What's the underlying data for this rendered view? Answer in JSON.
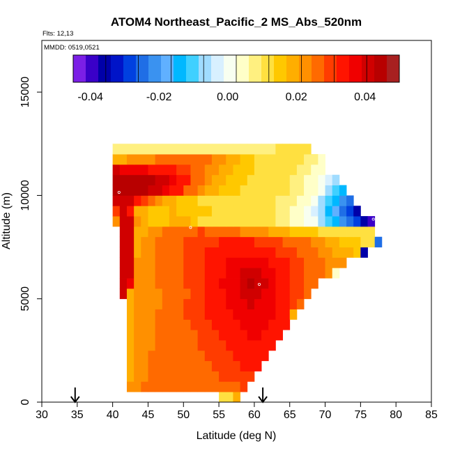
{
  "chart_data": {
    "type": "heatmap",
    "title": "ATOM4 Northeast_Pacific_2 MS_Abs_520nm",
    "annotations": {
      "flights": "Flts: 12,13",
      "dates": "MMDD: 0519,0521"
    },
    "xlabel": "Latitude (deg N)",
    "ylabel": "Altitude (m)",
    "xlim": [
      30,
      85
    ],
    "ylim": [
      0,
      17500
    ],
    "x_ticks": [
      "30",
      "35",
      "40",
      "45",
      "50",
      "55",
      "60",
      "65",
      "70",
      "75",
      "80",
      "85"
    ],
    "y_ticks": [
      "0",
      "5000",
      "10000",
      "15000"
    ],
    "grid": false,
    "colorbar": {
      "placement": "top",
      "range": [
        -0.045,
        0.05
      ],
      "tick_labels": [
        "-0.04",
        "-0.02",
        "0.00",
        "0.02",
        "0.04"
      ],
      "colors": [
        "#7b1fe6",
        "#3a00c8",
        "#0000a8",
        "#0014c8",
        "#0040e0",
        "#1f6ee6",
        "#3a92f0",
        "#60b0ff",
        "#00b8ff",
        "#40d0ff",
        "#a0dcff",
        "#d8f0ff",
        "#f8fff0",
        "#ffffc8",
        "#fff080",
        "#ffe040",
        "#ffc800",
        "#ffae00",
        "#ff9000",
        "#ff6a00",
        "#ff3c00",
        "#ff1400",
        "#f00000",
        "#d00000",
        "#b80000",
        "#a82020"
      ]
    },
    "flight_markers_lat": [
      34.7,
      61.2
    ],
    "highlight_points": [
      {
        "lat": 40.9,
        "alt": 10150
      },
      {
        "lat": 51.0,
        "alt": 8450
      },
      {
        "lat": 60.7,
        "alt": 5700
      },
      {
        "lat": 76.8,
        "alt": 8850
      }
    ],
    "grid_lat_step": 1,
    "grid_alt_step": 500,
    "cells": [
      {
        "alt": 250,
        "lat_start": 55,
        "values": [
          0.01,
          0.01,
          0.018
        ]
      },
      {
        "alt": 750,
        "lat_start": 42,
        "values": [
          0.022,
          0.022,
          0.025,
          0.025,
          0.025,
          0.025,
          0.025,
          0.026,
          0.026,
          0.026,
          0.027,
          0.027,
          0.028,
          0.028,
          0.028,
          0.028,
          0.03
        ]
      },
      {
        "alt": 1250,
        "lat_start": 42,
        "values": [
          0.02,
          0.022,
          0.024,
          0.025,
          0.025,
          0.026,
          0.026,
          0.026,
          0.027,
          0.027,
          0.027,
          0.028,
          0.028,
          0.029,
          0.029,
          0.03,
          0.031,
          0.031
        ]
      },
      {
        "alt": 1750,
        "lat_start": 42,
        "values": [
          0.02,
          0.022,
          0.023,
          0.025,
          0.025,
          0.025,
          0.026,
          0.027,
          0.027,
          0.027,
          0.028,
          0.028,
          0.029,
          0.029,
          0.03,
          0.031,
          0.032,
          0.033,
          0.033
        ]
      },
      {
        "alt": 2250,
        "lat_start": 42,
        "values": [
          0.02,
          0.021,
          0.023,
          0.025,
          0.025,
          0.026,
          0.026,
          0.027,
          0.027,
          0.028,
          0.028,
          0.029,
          0.029,
          0.03,
          0.031,
          0.032,
          0.033,
          0.034,
          0.034,
          0.034
        ]
      },
      {
        "alt": 2750,
        "lat_start": 42,
        "values": [
          0.02,
          0.021,
          0.023,
          0.024,
          0.025,
          0.026,
          0.026,
          0.027,
          0.028,
          0.028,
          0.029,
          0.029,
          0.03,
          0.031,
          0.032,
          0.033,
          0.034,
          0.035,
          0.035,
          0.034,
          0.033
        ]
      },
      {
        "alt": 3250,
        "lat_start": 42,
        "values": [
          0.02,
          0.021,
          0.023,
          0.024,
          0.025,
          0.026,
          0.027,
          0.027,
          0.028,
          0.028,
          0.029,
          0.03,
          0.031,
          0.032,
          0.033,
          0.034,
          0.035,
          0.036,
          0.036,
          0.035,
          0.034,
          0.033
        ]
      },
      {
        "alt": 3750,
        "lat_start": 42,
        "values": [
          0.02,
          0.021,
          0.022,
          0.024,
          0.025,
          0.026,
          0.027,
          0.027,
          0.028,
          0.029,
          0.03,
          0.031,
          0.032,
          0.033,
          0.034,
          0.035,
          0.036,
          0.037,
          0.037,
          0.036,
          0.035,
          0.033,
          0.032
        ]
      },
      {
        "alt": 4250,
        "lat_start": 42,
        "values": [
          0.02,
          0.021,
          0.022,
          0.023,
          0.025,
          0.026,
          0.027,
          0.028,
          0.029,
          0.03,
          0.031,
          0.032,
          0.033,
          0.034,
          0.035,
          0.036,
          0.037,
          0.038,
          0.038,
          0.037,
          0.036,
          0.034,
          0.032,
          0.02
        ]
      },
      {
        "alt": 4750,
        "lat_start": 42,
        "values": [
          0.02,
          0.021,
          0.022,
          0.023,
          0.024,
          0.026,
          0.027,
          0.028,
          0.029,
          0.03,
          0.031,
          0.032,
          0.033,
          0.034,
          0.036,
          0.037,
          0.039,
          0.04,
          0.039,
          0.038,
          0.036,
          0.034,
          0.032,
          0.03,
          0.028
        ]
      },
      {
        "alt": 5250,
        "lat_start": 41,
        "values": [
          0.04,
          0.02,
          0.021,
          0.022,
          0.023,
          0.024,
          0.025,
          0.026,
          0.027,
          0.028,
          0.029,
          0.03,
          0.032,
          0.033,
          0.035,
          0.036,
          0.038,
          0.04,
          0.041,
          0.041,
          0.039,
          0.037,
          0.035,
          0.033,
          0.031,
          0.029,
          0.028
        ]
      },
      {
        "alt": 5750,
        "lat_start": 41,
        "values": [
          0.04,
          0.038,
          0.022,
          0.023,
          0.024,
          0.025,
          0.026,
          0.027,
          0.028,
          0.029,
          0.03,
          0.031,
          0.033,
          0.034,
          0.036,
          0.037,
          0.039,
          0.041,
          0.043,
          0.042,
          0.04,
          0.038,
          0.035,
          0.033,
          0.031,
          0.029,
          0.028,
          0.026
        ]
      },
      {
        "alt": 6250,
        "lat_start": 41,
        "values": [
          0.04,
          0.04,
          0.022,
          0.023,
          0.024,
          0.025,
          0.026,
          0.027,
          0.028,
          0.029,
          0.03,
          0.031,
          0.032,
          0.034,
          0.035,
          0.037,
          0.038,
          0.04,
          0.041,
          0.041,
          0.039,
          0.037,
          0.035,
          0.033,
          0.031,
          0.029,
          0.028,
          0.026,
          0.025,
          0.024,
          0.006
        ]
      },
      {
        "alt": 6750,
        "lat_start": 41,
        "values": [
          0.04,
          0.04,
          0.022,
          0.023,
          0.024,
          0.025,
          0.026,
          0.027,
          0.028,
          0.029,
          0.03,
          0.031,
          0.032,
          0.033,
          0.034,
          0.036,
          0.037,
          0.038,
          0.039,
          0.038,
          0.037,
          0.035,
          0.033,
          0.032,
          0.03,
          0.029,
          0.028,
          0.026,
          0.025,
          0.024,
          0.023,
          0.022
        ]
      },
      {
        "alt": 7250,
        "lat_start": 41,
        "values": [
          0.04,
          0.04,
          0.02,
          0.022,
          0.024,
          0.025,
          0.026,
          0.027,
          0.028,
          0.029,
          0.03,
          0.031,
          0.032,
          0.033,
          0.033,
          0.034,
          0.035,
          0.035,
          0.035,
          0.034,
          0.033,
          0.032,
          0.031,
          0.03,
          0.029,
          0.028,
          0.027,
          0.025,
          0.024,
          0.022,
          0.02,
          0.019,
          0.018,
          0.016,
          -0.035
        ]
      },
      {
        "alt": 7750,
        "lat_start": 41,
        "values": [
          0.04,
          0.04,
          0.02,
          0.022,
          0.023,
          0.025,
          0.026,
          0.027,
          0.028,
          0.029,
          0.03,
          0.03,
          0.031,
          0.031,
          0.032,
          0.032,
          0.032,
          0.032,
          0.032,
          0.031,
          0.03,
          0.03,
          0.029,
          0.028,
          0.027,
          0.026,
          0.025,
          0.024,
          0.022,
          0.02,
          0.018,
          0.016,
          0.015,
          0.014,
          0.013,
          0.013,
          -0.025
        ]
      },
      {
        "alt": 8250,
        "lat_start": 41,
        "values": [
          0.04,
          0.04,
          0.02,
          0.02,
          0.022,
          0.024,
          0.026,
          0.027,
          0.028,
          0.028,
          0.028,
          0.03,
          0.028,
          0.028,
          0.027,
          0.026,
          0.025,
          0.024,
          0.023,
          0.022,
          0.021,
          0.02,
          0.019,
          0.018,
          0.017,
          0.016,
          0.015,
          0.014,
          0.013,
          0.012,
          0.011,
          0.011,
          0.011,
          0.012,
          0.012,
          0.013
        ]
      },
      {
        "alt": 8750,
        "lat_start": 40,
        "values": [
          0.022,
          0.04,
          0.04,
          0.022,
          0.02,
          0.016,
          0.015,
          0.016,
          0.018,
          0.02,
          0.018,
          0.015,
          0.013,
          0.013,
          0.013,
          0.012,
          0.012,
          0.012,
          0.011,
          0.011,
          0.011,
          0.01,
          0.01,
          0.009,
          0.008,
          0.006,
          0.004,
          0.002,
          0.0,
          -0.005,
          -0.01,
          -0.015,
          -0.02,
          -0.025,
          -0.03,
          -0.035,
          -0.04
        ]
      },
      {
        "alt": 9250,
        "lat_start": 40,
        "values": [
          0.03,
          0.04,
          0.035,
          0.02,
          0.018,
          0.016,
          0.016,
          0.017,
          0.018,
          0.017,
          0.016,
          0.015,
          0.014,
          0.014,
          0.013,
          0.013,
          0.012,
          0.012,
          0.011,
          0.011,
          0.011,
          0.01,
          0.01,
          0.009,
          0.008,
          0.006,
          0.004,
          0.001,
          -0.003,
          -0.008,
          -0.013,
          -0.018,
          -0.024,
          -0.03,
          -0.035
        ]
      },
      {
        "alt": 9750,
        "lat_start": 40,
        "values": [
          0.04,
          0.04,
          0.04,
          0.035,
          0.03,
          0.025,
          0.022,
          0.02,
          0.018,
          0.016,
          0.015,
          0.014,
          0.013,
          0.013,
          0.012,
          0.012,
          0.012,
          0.011,
          0.011,
          0.011,
          0.011,
          0.01,
          0.01,
          0.009,
          0.008,
          0.007,
          0.005,
          0.003,
          0.0,
          -0.005,
          -0.01,
          -0.015,
          -0.02,
          -0.025
        ]
      },
      {
        "alt": 10250,
        "lat_start": 40,
        "values": [
          0.045,
          0.045,
          0.045,
          0.044,
          0.043,
          0.042,
          0.04,
          0.038,
          0.035,
          0.032,
          0.028,
          0.025,
          0.022,
          0.02,
          0.018,
          0.016,
          0.015,
          0.014,
          0.013,
          0.013,
          0.012,
          0.011,
          0.011,
          0.01,
          0.01,
          0.009,
          0.007,
          0.005,
          0.003,
          0.0,
          -0.005,
          -0.01,
          -0.015
        ]
      },
      {
        "alt": 10750,
        "lat_start": 40,
        "values": [
          0.045,
          0.045,
          0.045,
          0.045,
          0.044,
          0.043,
          0.042,
          0.04,
          0.038,
          0.035,
          0.032,
          0.028,
          0.025,
          0.022,
          0.02,
          0.018,
          0.016,
          0.015,
          0.014,
          0.013,
          0.012,
          0.012,
          0.011,
          0.011,
          0.01,
          0.009,
          0.008,
          0.006,
          0.004,
          0.002,
          -0.002,
          -0.005
        ]
      },
      {
        "alt": 11250,
        "lat_start": 40,
        "values": [
          0.04,
          0.039,
          0.038,
          0.037,
          0.036,
          0.035,
          0.034,
          0.033,
          0.032,
          0.031,
          0.03,
          0.028,
          0.026,
          0.024,
          0.022,
          0.02,
          0.018,
          0.016,
          0.015,
          0.014,
          0.013,
          0.012,
          0.012,
          0.011,
          0.011,
          0.01,
          0.009,
          0.008,
          0.006,
          0.004
        ]
      },
      {
        "alt": 11750,
        "lat_start": 40,
        "values": [
          0.02,
          0.02,
          0.021,
          0.022,
          0.023,
          0.024,
          0.025,
          0.026,
          0.027,
          0.027,
          0.027,
          0.027,
          0.026,
          0.025,
          0.024,
          0.022,
          0.02,
          0.018,
          0.016,
          0.014,
          0.013,
          0.012,
          0.012,
          0.011,
          0.011,
          0.011,
          0.01,
          0.009,
          0.008,
          0.006
        ]
      },
      {
        "alt": 12250,
        "lat_start": 40,
        "values": [
          0.008,
          0.008,
          0.008,
          0.008,
          0.008,
          0.008,
          0.008,
          0.008,
          0.008,
          0.008,
          0.008,
          0.009,
          0.009,
          0.009,
          0.009,
          0.009,
          0.009,
          0.009,
          0.009,
          0.009,
          0.009,
          0.009,
          0.009,
          0.01,
          0.01,
          0.01,
          0.01,
          0.01
        ]
      }
    ]
  }
}
